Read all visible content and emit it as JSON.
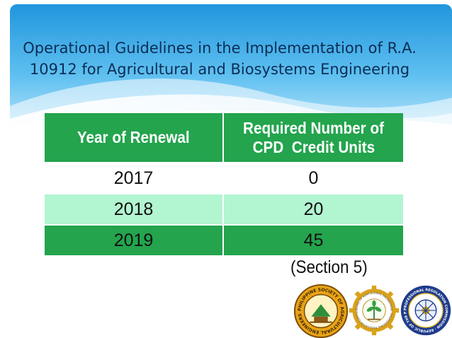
{
  "slide": {
    "title_line1": "Operational Guidelines in the Implementation of R.A.",
    "title_line2": "10912 for Agricultural and Biosystems Engineering"
  },
  "table": {
    "header_year": "Year of Renewal",
    "header_units_line1": "Required Number of",
    "header_units_line2": "CPD  Credit Units",
    "rows": [
      {
        "year": "2017",
        "units": "0"
      },
      {
        "year": "2018",
        "units": "20"
      },
      {
        "year": "2019",
        "units": "45"
      }
    ]
  },
  "footnote": "(Section 5)",
  "logos": {
    "psae_ring_text": "PHILIPPINE SOCIETY OF AGRICULTURAL ENGINEERS",
    "bae_ring_text": "BOARD OF AGRICULTURAL ENGINEERING · PROFESSIONAL REGULATION COMMISSION",
    "prc_ring_text": "PROFESSIONAL REGULATION COMMISSION · REPUBLIC OF THE PHILIPPINES"
  },
  "colors": {
    "title_text": "#0c2d55",
    "header_green": "#23a44d",
    "row_light_green": "#b2f5d1",
    "banner_blue": "#2aa3e8"
  }
}
